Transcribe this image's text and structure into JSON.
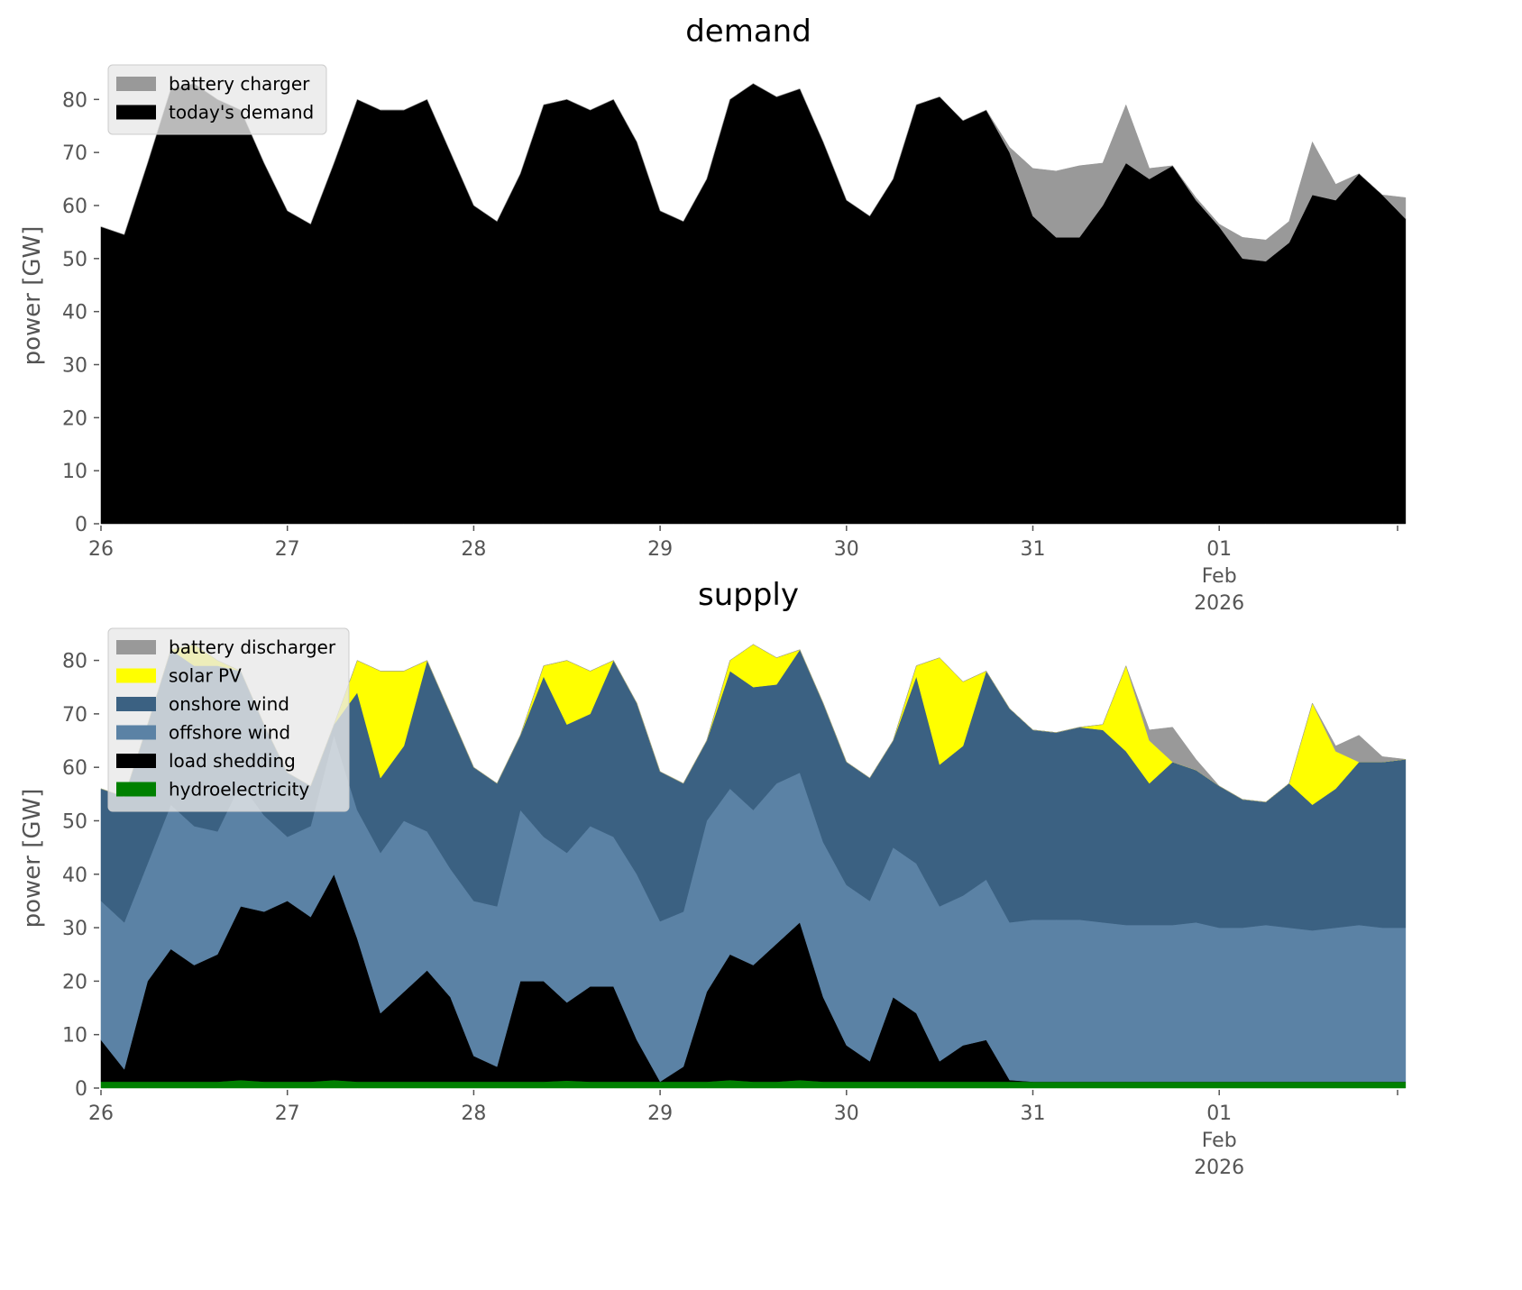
{
  "chart_data": [
    {
      "type": "area",
      "stacked": true,
      "title": "demand",
      "ylabel": "power [GW]",
      "xlabel": "",
      "ylim": [
        0,
        86
      ],
      "yticks": [
        "0",
        "10",
        "20",
        "30",
        "40",
        "50",
        "60",
        "70",
        "80"
      ],
      "xticks": [
        {
          "hours": 0,
          "label": [
            "26"
          ]
        },
        {
          "hours": 24,
          "label": [
            "27"
          ]
        },
        {
          "hours": 48,
          "label": [
            "28"
          ]
        },
        {
          "hours": 72,
          "label": [
            "29"
          ]
        },
        {
          "hours": 96,
          "label": [
            "30"
          ]
        },
        {
          "hours": 120,
          "label": [
            "31"
          ]
        },
        {
          "hours": 144,
          "label": [
            "01",
            "Feb",
            "2026"
          ]
        }
      ],
      "start": "2026-01-26 00:00",
      "time_step_hours": 3,
      "legend_position": "top-left",
      "series": [
        {
          "name": "today's demand",
          "color": "#000000",
          "values": [
            56,
            54.5,
            68,
            82,
            83,
            80,
            78,
            68,
            59,
            56.5,
            68,
            80,
            78,
            78,
            80,
            70,
            60,
            57,
            66,
            79,
            80,
            78,
            80,
            72,
            59,
            57,
            65,
            80,
            83,
            80.5,
            82,
            72,
            61,
            58,
            65,
            79,
            80.5,
            76,
            78,
            70,
            58,
            54,
            54,
            60,
            68,
            65,
            67.5,
            61,
            56,
            50,
            49.5,
            53,
            62,
            61,
            66,
            62,
            57.5
          ]
        },
        {
          "name": "battery charger",
          "color": "#999999",
          "values": [
            0,
            0,
            0,
            0,
            0,
            0,
            0,
            0,
            0,
            0,
            0,
            0,
            0,
            0,
            0,
            0,
            0,
            0,
            0,
            0,
            0,
            0,
            0,
            0,
            0,
            0,
            0,
            0,
            0,
            0,
            0,
            0,
            0,
            0,
            0,
            0,
            0,
            0,
            0,
            1,
            9,
            12.5,
            13.5,
            8,
            11,
            2,
            0,
            0.5,
            0.5,
            4,
            4,
            4,
            10,
            3,
            0,
            0,
            4
          ]
        }
      ],
      "legend": [
        "battery charger",
        "today's demand"
      ]
    },
    {
      "type": "area",
      "stacked": true,
      "title": "supply",
      "ylabel": "power [GW]",
      "xlabel": "",
      "ylim": [
        0,
        86
      ],
      "yticks": [
        "0",
        "10",
        "20",
        "30",
        "40",
        "50",
        "60",
        "70",
        "80"
      ],
      "xticks": [
        {
          "hours": 0,
          "label": [
            "26"
          ]
        },
        {
          "hours": 24,
          "label": [
            "27"
          ]
        },
        {
          "hours": 48,
          "label": [
            "28"
          ]
        },
        {
          "hours": 72,
          "label": [
            "29"
          ]
        },
        {
          "hours": 96,
          "label": [
            "30"
          ]
        },
        {
          "hours": 120,
          "label": [
            "31"
          ]
        },
        {
          "hours": 144,
          "label": [
            "01",
            "Feb",
            "2026"
          ]
        }
      ],
      "start": "2026-01-26 00:00",
      "time_step_hours": 3,
      "legend_position": "top-left",
      "series": [
        {
          "name": "hydroelectricity",
          "color": "#008000",
          "values": [
            1.2,
            1.2,
            1.2,
            1.2,
            1.2,
            1.2,
            1.5,
            1.2,
            1.2,
            1.2,
            1.5,
            1.2,
            1.2,
            1.2,
            1.2,
            1.2,
            1.2,
            1.2,
            1.2,
            1.2,
            1.4,
            1.2,
            1.2,
            1.2,
            1.2,
            1.2,
            1.2,
            1.5,
            1.2,
            1.2,
            1.5,
            1.2,
            1.2,
            1.2,
            1.2,
            1.2,
            1.2,
            1.2,
            1.2,
            1.2,
            1.2,
            1.2,
            1.2,
            1.2,
            1.2,
            1.2,
            1.2,
            1.2,
            1.2,
            1.2,
            1.2,
            1.2,
            1.2,
            1.2,
            1.2,
            1.2,
            1.2
          ]
        },
        {
          "name": "load shedding",
          "color": "#000000",
          "values": [
            7.8,
            2.3,
            18.8,
            24.8,
            21.8,
            23.8,
            32.5,
            31.8,
            33.8,
            30.8,
            38.5,
            26.8,
            12.8,
            16.8,
            20.8,
            15.8,
            4.8,
            2.8,
            18.8,
            18.8,
            14.6,
            17.8,
            17.8,
            7.8,
            0,
            2.8,
            16.8,
            23.5,
            21.8,
            25.8,
            29.5,
            15.8,
            6.8,
            3.8,
            15.8,
            12.8,
            3.8,
            6.8,
            7.8,
            0.3,
            0,
            0,
            0,
            0,
            0,
            0,
            0,
            0,
            0,
            0,
            0,
            0,
            0,
            0,
            0,
            0,
            0
          ]
        },
        {
          "name": "offshore wind",
          "color": "#5b82a5",
          "values": [
            26,
            27.5,
            22,
            27,
            26,
            23,
            23,
            18,
            12,
            17,
            26,
            24,
            30,
            32,
            26,
            24,
            29,
            30,
            32,
            27,
            28,
            30,
            28,
            31,
            30,
            29,
            32,
            31,
            29,
            30,
            28,
            29,
            30,
            30,
            28,
            28,
            29,
            28,
            30,
            29.5,
            30.3,
            30.3,
            30.3,
            29.8,
            29.3,
            29.3,
            29.3,
            29.8,
            28.8,
            28.8,
            29.3,
            28.8,
            28.3,
            28.8,
            29.3,
            28.8,
            28.8
          ]
        },
        {
          "name": "onshore wind",
          "color": "#3b6182",
          "values": [
            21,
            23.5,
            26,
            29,
            30,
            31,
            21,
            17,
            12,
            7.5,
            2,
            22,
            14,
            14,
            32,
            29,
            25,
            23,
            14,
            30,
            24,
            21,
            33,
            32,
            28,
            24,
            15,
            22,
            23,
            18.5,
            23,
            26,
            23,
            23,
            20,
            35,
            26.5,
            28,
            39,
            40,
            35.5,
            35,
            36,
            36,
            32.5,
            26.5,
            30.5,
            28.5,
            26.5,
            24,
            23,
            27,
            23.5,
            26,
            30.5,
            31,
            31.5
          ]
        },
        {
          "name": "solar PV",
          "color": "#ffff00",
          "values": [
            0,
            0,
            0,
            0,
            4,
            1,
            0,
            0,
            0,
            0,
            0,
            6,
            20,
            14,
            0,
            0,
            0,
            0,
            0,
            2,
            12,
            8,
            0,
            0,
            0,
            0,
            0,
            2,
            8,
            5,
            0,
            0,
            0,
            0,
            0,
            2,
            20,
            12,
            0,
            0,
            0,
            0,
            0,
            1,
            16,
            8,
            0,
            0,
            0,
            0,
            0,
            0,
            19,
            7,
            0,
            0,
            0
          ]
        },
        {
          "name": "battery discharger",
          "color": "#999999",
          "values": [
            0,
            0,
            0,
            0,
            0,
            0,
            0,
            0,
            0,
            0,
            0,
            0,
            0,
            0,
            0,
            0,
            0,
            0,
            0,
            0,
            0,
            0,
            0,
            0,
            0,
            0,
            0,
            0,
            0,
            0,
            0,
            0,
            0,
            0,
            0,
            0,
            0,
            0,
            0,
            0,
            0,
            0,
            0,
            0,
            0,
            2,
            6.5,
            2,
            0,
            0,
            0,
            0,
            0,
            1,
            5,
            1,
            0
          ]
        }
      ],
      "legend": [
        "battery discharger",
        "solar PV",
        "onshore wind",
        "offshore wind",
        "load shedding",
        "hydroelectricity"
      ]
    }
  ]
}
